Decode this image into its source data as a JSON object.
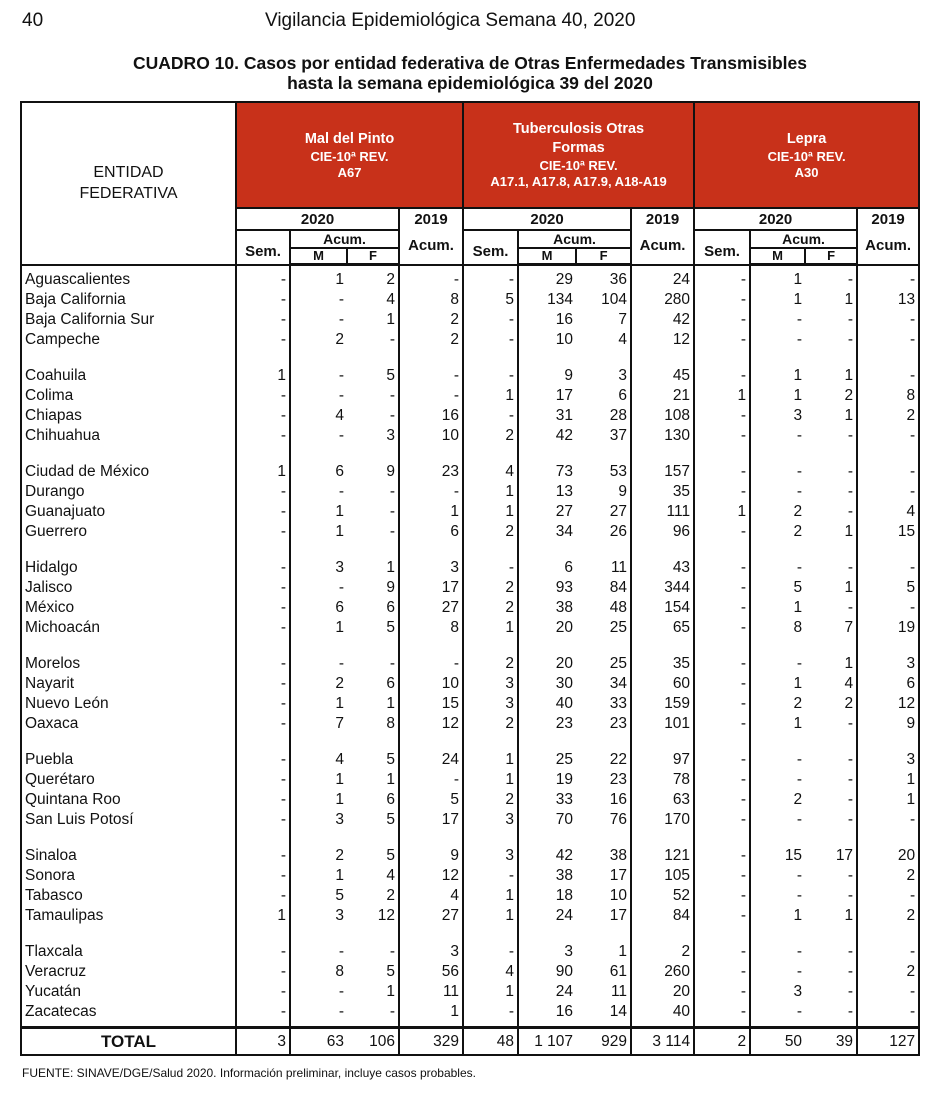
{
  "page_number": "40",
  "running_title": "Vigilancia Epidemiológica Semana 40, 2020",
  "caption": [
    "CUADRO 10.  Casos por entidad federativa de Otras Enfermedades Transmisibles",
    "hasta la semana epidemiológica 39 del 2020"
  ],
  "header": {
    "entity": [
      "ENTIDAD",
      "FEDERATIVA"
    ],
    "diseases": [
      {
        "name": [
          "Mal del Pinto"
        ],
        "cie": "CIE-10ª REV.",
        "code": "A67"
      },
      {
        "name": [
          "Tuberculosis Otras",
          "Formas"
        ],
        "cie": "CIE-10ª REV.",
        "code": "A17.1, A17.8, A17.9, A18-A19"
      },
      {
        "name": [
          "Lepra"
        ],
        "cie": "CIE-10ª REV.",
        "code": "A30"
      }
    ],
    "year_current": "2020",
    "year_prev": "2019",
    "sem": "Sem.",
    "acum": "Acum.",
    "m": "M",
    "f": "F"
  },
  "colors": {
    "header_red": "#c8311a"
  },
  "rows": [
    [
      "Aguascalientes",
      "-",
      "1",
      "2",
      "-",
      "-",
      "29",
      "36",
      "24",
      "-",
      "1",
      "-",
      "-"
    ],
    [
      "Baja California",
      "-",
      "-",
      "4",
      "8",
      "5",
      "134",
      "104",
      "280",
      "-",
      "1",
      "1",
      "13"
    ],
    [
      "Baja California Sur",
      "-",
      "-",
      "1",
      "2",
      "-",
      "16",
      "7",
      "42",
      "-",
      "-",
      "-",
      "-"
    ],
    [
      "Campeche",
      "-",
      "2",
      "-",
      "2",
      "-",
      "10",
      "4",
      "12",
      "-",
      "-",
      "-",
      "-"
    ],
    [
      "Coahuila",
      "1",
      "-",
      "5",
      "-",
      "-",
      "9",
      "3",
      "45",
      "-",
      "1",
      "1",
      "-"
    ],
    [
      "Colima",
      "-",
      "-",
      "-",
      "-",
      "1",
      "17",
      "6",
      "21",
      "1",
      "1",
      "2",
      "8"
    ],
    [
      "Chiapas",
      "-",
      "4",
      "-",
      "16",
      "-",
      "31",
      "28",
      "108",
      "-",
      "3",
      "1",
      "2"
    ],
    [
      "Chihuahua",
      "-",
      "-",
      "3",
      "10",
      "2",
      "42",
      "37",
      "130",
      "-",
      "-",
      "-",
      "-"
    ],
    [
      "Ciudad de México",
      "1",
      "6",
      "9",
      "23",
      "4",
      "73",
      "53",
      "157",
      "-",
      "-",
      "-",
      "-"
    ],
    [
      "Durango",
      "-",
      "-",
      "-",
      "-",
      "1",
      "13",
      "9",
      "35",
      "-",
      "-",
      "-",
      "-"
    ],
    [
      "Guanajuato",
      "-",
      "1",
      "-",
      "1",
      "1",
      "27",
      "27",
      "111",
      "1",
      "2",
      "-",
      "4"
    ],
    [
      "Guerrero",
      "-",
      "1",
      "-",
      "6",
      "2",
      "34",
      "26",
      "96",
      "-",
      "2",
      "1",
      "15"
    ],
    [
      "Hidalgo",
      "-",
      "3",
      "1",
      "3",
      "-",
      "6",
      "11",
      "43",
      "-",
      "-",
      "-",
      "-"
    ],
    [
      "Jalisco",
      "-",
      "-",
      "9",
      "17",
      "2",
      "93",
      "84",
      "344",
      "-",
      "5",
      "1",
      "5"
    ],
    [
      "México",
      "-",
      "6",
      "6",
      "27",
      "2",
      "38",
      "48",
      "154",
      "-",
      "1",
      "-",
      "-"
    ],
    [
      "Michoacán",
      "-",
      "1",
      "5",
      "8",
      "1",
      "20",
      "25",
      "65",
      "-",
      "8",
      "7",
      "19"
    ],
    [
      "Morelos",
      "-",
      "-",
      "-",
      "-",
      "2",
      "20",
      "25",
      "35",
      "-",
      "-",
      "1",
      "3"
    ],
    [
      "Nayarit",
      "-",
      "2",
      "6",
      "10",
      "3",
      "30",
      "34",
      "60",
      "-",
      "1",
      "4",
      "6"
    ],
    [
      "Nuevo León",
      "-",
      "1",
      "1",
      "15",
      "3",
      "40",
      "33",
      "159",
      "-",
      "2",
      "2",
      "12"
    ],
    [
      "Oaxaca",
      "-",
      "7",
      "8",
      "12",
      "2",
      "23",
      "23",
      "101",
      "-",
      "1",
      "-",
      "9"
    ],
    [
      "Puebla",
      "-",
      "4",
      "5",
      "24",
      "1",
      "25",
      "22",
      "97",
      "-",
      "-",
      "-",
      "3"
    ],
    [
      "Querétaro",
      "-",
      "1",
      "1",
      "-",
      "1",
      "19",
      "23",
      "78",
      "-",
      "-",
      "-",
      "1"
    ],
    [
      "Quintana Roo",
      "-",
      "1",
      "6",
      "5",
      "2",
      "33",
      "16",
      "63",
      "-",
      "2",
      "-",
      "1"
    ],
    [
      "San Luis Potosí",
      "-",
      "3",
      "5",
      "17",
      "3",
      "70",
      "76",
      "170",
      "-",
      "-",
      "-",
      "-"
    ],
    [
      "Sinaloa",
      "-",
      "2",
      "5",
      "9",
      "3",
      "42",
      "38",
      "121",
      "-",
      "15",
      "17",
      "20"
    ],
    [
      "Sonora",
      "-",
      "1",
      "4",
      "12",
      "-",
      "38",
      "17",
      "105",
      "-",
      "-",
      "-",
      "2"
    ],
    [
      "Tabasco",
      "-",
      "5",
      "2",
      "4",
      "1",
      "18",
      "10",
      "52",
      "-",
      "-",
      "-",
      "-"
    ],
    [
      "Tamaulipas",
      "1",
      "3",
      "12",
      "27",
      "1",
      "24",
      "17",
      "84",
      "-",
      "1",
      "1",
      "2"
    ],
    [
      "Tlaxcala",
      "-",
      "-",
      "-",
      "3",
      "-",
      "3",
      "1",
      "2",
      "-",
      "-",
      "-",
      "-"
    ],
    [
      "Veracruz",
      "-",
      "8",
      "5",
      "56",
      "4",
      "90",
      "61",
      "260",
      "-",
      "-",
      "-",
      "2"
    ],
    [
      "Yucatán",
      "-",
      "-",
      "1",
      "11",
      "1",
      "24",
      "11",
      "20",
      "-",
      "3",
      "-",
      "-"
    ],
    [
      "Zacatecas",
      "-",
      "-",
      "-",
      "1",
      "-",
      "16",
      "14",
      "40",
      "-",
      "-",
      "-",
      "-"
    ]
  ],
  "total": [
    "TOTAL",
    "3",
    "63",
    "106",
    "329",
    "48",
    "1 107",
    "929",
    "3 114",
    "2",
    "50",
    "39",
    "127"
  ],
  "source": "FUENTE: SINAVE/DGE/Salud 2020. Información preliminar, incluye casos probables."
}
